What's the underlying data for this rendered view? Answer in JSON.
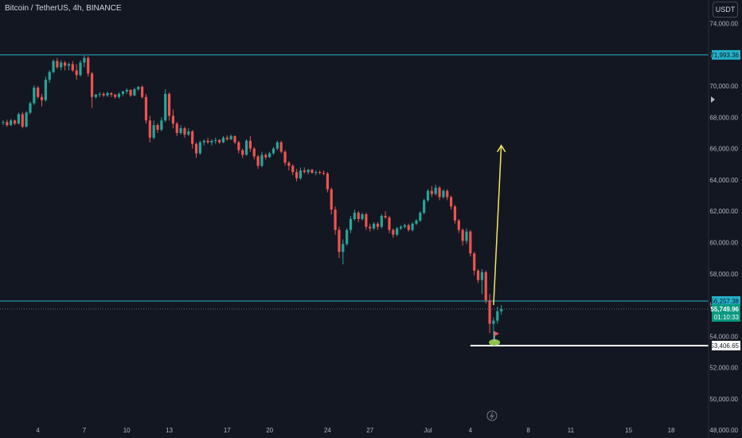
{
  "header": {
    "symbol": "Bitcoin / TetherUS, 4h, BINANCE",
    "currency_button": "USDT"
  },
  "colors": {
    "background": "#131722",
    "up": "#26a69a",
    "down": "#ef5350",
    "level_line": "#22b0c8",
    "arrow": "#f5e663",
    "support_line": "#ffffff",
    "axis_text": "#b2b5be"
  },
  "chart_data": {
    "type": "candlestick",
    "interval": "4h",
    "ylim": [
      47500,
      75500
    ],
    "x_ticks": [
      {
        "label": "4",
        "i": 9
      },
      {
        "label": "7",
        "i": 21
      },
      {
        "label": "10",
        "i": 32
      },
      {
        "label": "13",
        "i": 43
      },
      {
        "label": "17",
        "i": 58
      },
      {
        "label": "20",
        "i": 69
      },
      {
        "label": "24",
        "i": 84
      },
      {
        "label": "27",
        "i": 95
      },
      {
        "label": "Jul",
        "i": 110
      },
      {
        "label": "4",
        "i": 121
      },
      {
        "label": "8",
        "i": 136
      },
      {
        "label": "11",
        "i": 147
      },
      {
        "label": "15",
        "i": 162
      },
      {
        "label": "18",
        "i": 173
      }
    ],
    "y_ticks": [
      "74,000.00",
      "72,000.00",
      "70,000.00",
      "68,000.00",
      "66,000.00",
      "64,000.00",
      "62,000.00",
      "60,000.00",
      "58,000.00",
      "56,000.00",
      "54,000.00",
      "52,000.00",
      "50,000.00",
      "48,000.00"
    ],
    "levels": [
      {
        "name": "upper-resistance",
        "value": 71993.36,
        "label": "71,993.36"
      },
      {
        "name": "level",
        "value": 56257.38,
        "label": "56,257.38"
      },
      {
        "name": "support",
        "value": 53406.65,
        "label": "53,406.65"
      }
    ],
    "current_price": {
      "value": 55749.96,
      "label": "55,749.96",
      "countdown": "01:10:33"
    },
    "projection_arrow": {
      "from_i": 127,
      "from_price": 56000,
      "to_i": 129,
      "to_price": 66200
    },
    "support_line_start_i": 121,
    "candles": [
      [
        67650,
        67800,
        67500,
        67700
      ],
      [
        67700,
        67850,
        67400,
        67500
      ],
      [
        67500,
        67900,
        67450,
        67800
      ],
      [
        67800,
        67850,
        67500,
        67600
      ],
      [
        67600,
        68300,
        67550,
        68200
      ],
      [
        68200,
        68350,
        67300,
        67400
      ],
      [
        67400,
        68400,
        67350,
        68300
      ],
      [
        68300,
        69000,
        68200,
        68900
      ],
      [
        68900,
        70050,
        68800,
        69900
      ],
      [
        69900,
        70000,
        69200,
        69300
      ],
      [
        69300,
        69500,
        68700,
        69100
      ],
      [
        69100,
        70600,
        69000,
        70400
      ],
      [
        70400,
        71000,
        70200,
        70900
      ],
      [
        70900,
        71700,
        70800,
        71600
      ],
      [
        71600,
        71800,
        71100,
        71200
      ],
      [
        71200,
        71650,
        71000,
        71500
      ],
      [
        71500,
        71600,
        71000,
        71300
      ],
      [
        71300,
        71500,
        71000,
        71400
      ],
      [
        71400,
        71600,
        70900,
        71000
      ],
      [
        71000,
        71400,
        70400,
        70700
      ],
      [
        70700,
        71650,
        70600,
        71500
      ],
      [
        71500,
        71950,
        71200,
        71800
      ],
      [
        71800,
        71900,
        70600,
        70800
      ],
      [
        70800,
        70900,
        68600,
        69300
      ],
      [
        69300,
        69500,
        69200,
        69450
      ],
      [
        69450,
        69600,
        69300,
        69500
      ],
      [
        69500,
        69600,
        69300,
        69400
      ],
      [
        69400,
        69650,
        69300,
        69550
      ],
      [
        69550,
        69600,
        69300,
        69450
      ],
      [
        69450,
        69500,
        69200,
        69300
      ],
      [
        69300,
        69600,
        69200,
        69500
      ],
      [
        69500,
        69700,
        69350,
        69650
      ],
      [
        69650,
        69850,
        69500,
        69750
      ],
      [
        69750,
        69800,
        69300,
        69400
      ],
      [
        69400,
        69900,
        69350,
        69800
      ],
      [
        69800,
        70000,
        69700,
        69950
      ],
      [
        69950,
        70050,
        69200,
        69300
      ],
      [
        69300,
        69500,
        67600,
        67800
      ],
      [
        67800,
        68100,
        66400,
        66700
      ],
      [
        66700,
        67800,
        66600,
        67500
      ],
      [
        67500,
        67600,
        67000,
        67200
      ],
      [
        67200,
        68000,
        67100,
        67800
      ],
      [
        67800,
        69800,
        67700,
        69500
      ],
      [
        69500,
        69600,
        67800,
        68100
      ],
      [
        68100,
        68500,
        67300,
        67600
      ],
      [
        67600,
        67700,
        66800,
        67000
      ],
      [
        67000,
        67500,
        66900,
        67300
      ],
      [
        67300,
        67400,
        66700,
        66900
      ],
      [
        66900,
        67300,
        66800,
        67100
      ],
      [
        67100,
        67200,
        66000,
        66300
      ],
      [
        66300,
        66400,
        65400,
        65700
      ],
      [
        65700,
        66500,
        65600,
        66400
      ],
      [
        66400,
        66600,
        66200,
        66500
      ],
      [
        66500,
        66700,
        66300,
        66400
      ],
      [
        66400,
        66600,
        66200,
        66500
      ],
      [
        66500,
        66700,
        66300,
        66550
      ],
      [
        66550,
        66600,
        66300,
        66400
      ],
      [
        66400,
        66800,
        66350,
        66700
      ],
      [
        66700,
        66850,
        66500,
        66600
      ],
      [
        66600,
        66900,
        66550,
        66800
      ],
      [
        66800,
        66850,
        66300,
        66400
      ],
      [
        66400,
        66500,
        65700,
        65900
      ],
      [
        65900,
        66000,
        65400,
        65600
      ],
      [
        65600,
        66600,
        65550,
        66500
      ],
      [
        66500,
        66800,
        65800,
        66000
      ],
      [
        66000,
        66100,
        65300,
        65500
      ],
      [
        65500,
        65600,
        64700,
        64900
      ],
      [
        64900,
        65800,
        64800,
        65600
      ],
      [
        65600,
        65700,
        65300,
        65450
      ],
      [
        65450,
        65800,
        65400,
        65700
      ],
      [
        65700,
        66100,
        65600,
        66000
      ],
      [
        66000,
        66500,
        65900,
        66400
      ],
      [
        66400,
        66500,
        65700,
        65800
      ],
      [
        65800,
        65900,
        64900,
        65100
      ],
      [
        65100,
        65200,
        64600,
        64900
      ],
      [
        64900,
        65000,
        64300,
        64500
      ],
      [
        64500,
        64700,
        63900,
        64100
      ],
      [
        64100,
        64800,
        64000,
        64600
      ],
      [
        64600,
        64800,
        64400,
        64500
      ],
      [
        64500,
        64700,
        64350,
        64650
      ],
      [
        64650,
        64700,
        64400,
        64450
      ],
      [
        64450,
        64600,
        64300,
        64500
      ],
      [
        64500,
        64600,
        64350,
        64450
      ],
      [
        64450,
        64600,
        64300,
        64400
      ],
      [
        64400,
        64500,
        63200,
        63400
      ],
      [
        63400,
        63500,
        61800,
        62100
      ],
      [
        62100,
        62300,
        60500,
        60800
      ],
      [
        60800,
        61000,
        59000,
        59400
      ],
      [
        59400,
        60200,
        58600,
        59900
      ],
      [
        59900,
        60900,
        59800,
        60800
      ],
      [
        60800,
        61700,
        60600,
        61500
      ],
      [
        61500,
        62100,
        61400,
        61900
      ],
      [
        61900,
        62000,
        61300,
        61500
      ],
      [
        61500,
        61900,
        61400,
        61800
      ],
      [
        61800,
        61900,
        60800,
        61000
      ],
      [
        61000,
        61200,
        60700,
        60900
      ],
      [
        60900,
        61300,
        60800,
        61200
      ],
      [
        61200,
        61300,
        60800,
        61000
      ],
      [
        61000,
        61800,
        60900,
        61700
      ],
      [
        61700,
        62000,
        61500,
        61600
      ],
      [
        61600,
        61700,
        60600,
        60800
      ],
      [
        60800,
        60900,
        60300,
        60500
      ],
      [
        60500,
        61000,
        60400,
        60900
      ],
      [
        60900,
        61100,
        60800,
        61000
      ],
      [
        61000,
        61200,
        60900,
        61100
      ],
      [
        61100,
        61200,
        60700,
        60800
      ],
      [
        60800,
        61300,
        60700,
        61200
      ],
      [
        61200,
        61500,
        61100,
        61400
      ],
      [
        61400,
        62000,
        61300,
        61900
      ],
      [
        61900,
        62800,
        61800,
        62700
      ],
      [
        62700,
        63400,
        62600,
        63300
      ],
      [
        63300,
        63600,
        62900,
        63100
      ],
      [
        63100,
        63700,
        63000,
        63500
      ],
      [
        63500,
        63600,
        62700,
        62900
      ],
      [
        62900,
        63400,
        62800,
        63300
      ],
      [
        63300,
        63400,
        62700,
        62900
      ],
      [
        62900,
        63000,
        62100,
        62300
      ],
      [
        62300,
        62400,
        61200,
        61400
      ],
      [
        61400,
        61500,
        60600,
        60800
      ],
      [
        60800,
        60900,
        59800,
        60100
      ],
      [
        60100,
        60900,
        59900,
        60700
      ],
      [
        60700,
        60800,
        59100,
        59300
      ],
      [
        59300,
        59400,
        57900,
        58200
      ],
      [
        58200,
        58300,
        57400,
        57600
      ],
      [
        57600,
        58300,
        56700,
        58100
      ],
      [
        58100,
        58200,
        56100,
        56300
      ],
      [
        56300,
        56700,
        54200,
        54800
      ],
      [
        54800,
        55200,
        53400,
        55000
      ],
      [
        55000,
        55900,
        54800,
        55600
      ],
      [
        55600,
        56000,
        55400,
        55750
      ]
    ]
  }
}
